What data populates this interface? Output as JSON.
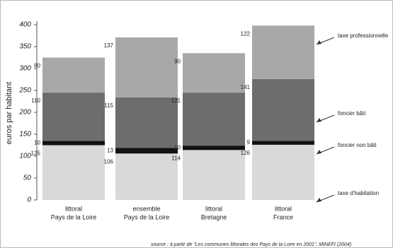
{
  "chart_data": {
    "type": "stacked-bar",
    "y_label": "euros par habitant",
    "categories": [
      [
        "littoral",
        "Pays de la Loire"
      ],
      [
        "ensemble",
        "Pays de la Loire"
      ],
      [
        "littoral",
        "Bretagne"
      ],
      [
        "littoral",
        "France"
      ]
    ],
    "series": [
      {
        "name": "taxe d'habitation",
        "color": "#d9d9d9",
        "values": [
          125,
          106,
          114,
          126
        ]
      },
      {
        "name": "foncier non bâti",
        "color": "#111111",
        "values": [
          10,
          13,
          10,
          9
        ]
      },
      {
        "name": "foncier bâti",
        "color": "#6d6d6d",
        "values": [
          110,
          115,
          121,
          141
        ]
      },
      {
        "name": "taxe professionnelle",
        "color": "#a8a8a8",
        "values": [
          80,
          137,
          90,
          122
        ]
      }
    ],
    "ylim": [
      0,
      400
    ],
    "yticks": [
      0,
      50,
      100,
      150,
      200,
      250,
      300,
      350,
      400
    ],
    "source": "source : à partir de \"Les communes littorales des Pays de la Loire en 2001\", MINEFI (2004)"
  }
}
